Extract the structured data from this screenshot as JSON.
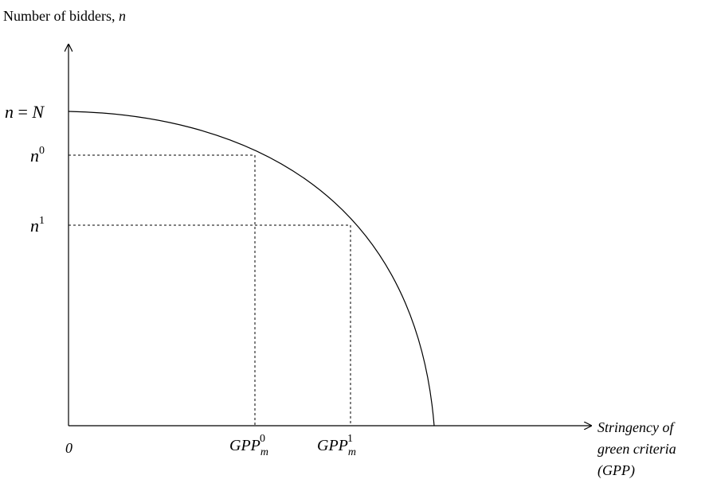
{
  "y_axis": {
    "title_prefix": "Number of bidders, ",
    "title_var": "n"
  },
  "x_axis": {
    "title_lines": [
      "Stringency of",
      "green criteria",
      "(GPP)"
    ],
    "origin": "0"
  },
  "y_ticks": {
    "max": {
      "lhs": "n",
      "eq": " = ",
      "rhs": "N"
    },
    "n0": {
      "base": "n",
      "sup": "0"
    },
    "n1": {
      "base": "n",
      "sup": "1"
    }
  },
  "x_ticks": {
    "gpp0": {
      "base": "GPP",
      "sub": "m",
      "sup": "0"
    },
    "gpp1": {
      "base": "GPP",
      "sub": "m",
      "sup": "1"
    }
  },
  "colors": {
    "line": "#000000",
    "background": "#ffffff"
  }
}
